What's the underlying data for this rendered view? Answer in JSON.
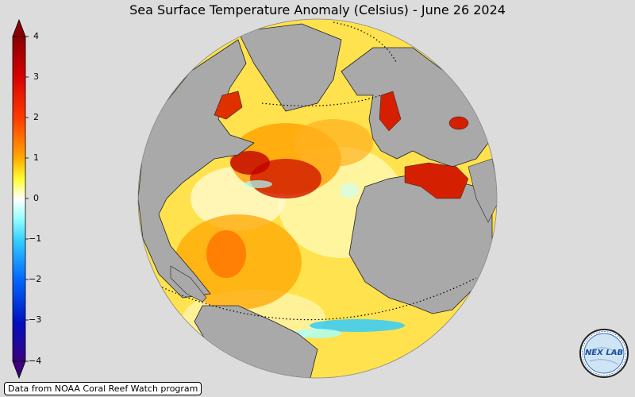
{
  "title": "Sea Surface Temperature Anomaly (Celsius) - June 26 2024",
  "colorbar": {
    "min": -4,
    "max": 4,
    "ticks": [
      "4",
      "3",
      "2",
      "1",
      "0",
      "−1",
      "−2",
      "−3",
      "−4"
    ],
    "colors": [
      "#3b0080",
      "#0033cc",
      "#0099ff",
      "#66ffff",
      "#ffffff",
      "#ffff33",
      "#ffb000",
      "#ff4000",
      "#c00000",
      "#8b0000"
    ],
    "extend": "both"
  },
  "source": "Data from NOAA Coral Reef Watch program",
  "logo": {
    "text": "NEX LAB",
    "icon": "nexlab-logo-icon"
  },
  "map": {
    "projection": "orthographic",
    "land_color": "#a9a9a9",
    "region": "Atlantic Ocean"
  }
}
